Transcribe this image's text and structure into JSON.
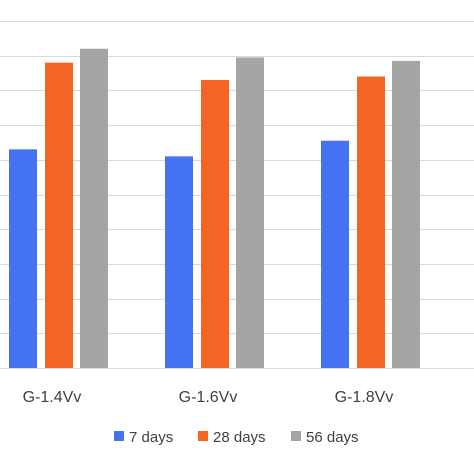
{
  "chart_data": {
    "type": "bar",
    "categories": [
      "G-1.4Vv",
      "G-1.6Vv",
      "G-1.8Vv"
    ],
    "series": [
      {
        "name": "7 days",
        "color": "#4472f0",
        "values": [
          63,
          61,
          65.5
        ]
      },
      {
        "name": "28 days",
        "color": "#f26522",
        "values": [
          88,
          83,
          84
        ]
      },
      {
        "name": "56 days",
        "color": "#a5a5a5",
        "values": [
          92,
          89.5,
          88.5
        ]
      }
    ],
    "ylim": [
      0,
      100
    ],
    "y_grid_step": 10,
    "grid": true,
    "legend": {
      "position": "bottom"
    }
  }
}
